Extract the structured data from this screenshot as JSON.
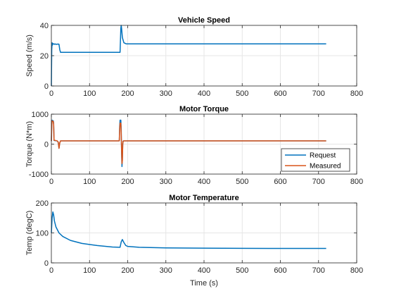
{
  "colors": {
    "request": "#0072BD",
    "measured": "#D95319",
    "grid": "#e6e6e6",
    "axis": "#262626"
  },
  "chart_data": [
    {
      "type": "line",
      "title": "Vehicle Speed",
      "xlabel": "",
      "ylabel": "Speed (m/s)",
      "xlim": [
        0,
        800
      ],
      "ylim": [
        0,
        40
      ],
      "xticks": [
        0,
        100,
        200,
        300,
        400,
        500,
        600,
        700,
        800
      ],
      "yticks": [
        0,
        20,
        40
      ],
      "grid": true,
      "series": [
        {
          "color": "#0072BD",
          "x": [
            0,
            1,
            2,
            3,
            4,
            8,
            9,
            12,
            18,
            20,
            22,
            24,
            180,
            181,
            182,
            183,
            184,
            186,
            190,
            196,
            200,
            720
          ],
          "y": [
            0,
            24,
            28.5,
            27,
            28,
            27.5,
            27.8,
            27.5,
            27.7,
            27.5,
            24,
            22.2,
            22.2,
            30,
            38,
            40,
            38,
            32,
            28.5,
            27.8,
            27.8,
            27.8
          ]
        }
      ]
    },
    {
      "type": "line",
      "title": "Motor Torque",
      "xlabel": "",
      "ylabel": "Torque (N*m)",
      "xlim": [
        0,
        800
      ],
      "ylim": [
        -1000,
        1000
      ],
      "xticks": [
        0,
        100,
        200,
        300,
        400,
        500,
        600,
        700,
        800
      ],
      "yticks": [
        -1000,
        0,
        1000
      ],
      "grid": true,
      "legend": "bottom-right",
      "series": [
        {
          "name": "Request",
          "color": "#0072BD",
          "x": [
            0,
            1,
            2,
            3,
            5,
            6,
            7,
            15,
            18,
            20,
            22,
            24,
            178,
            179,
            180,
            182,
            183,
            184,
            185,
            186,
            187,
            188,
            190,
            195,
            720
          ],
          "y": [
            100,
            780,
            800,
            780,
            780,
            700,
            120,
            110,
            60,
            -140,
            40,
            110,
            110,
            600,
            800,
            800,
            500,
            -300,
            -750,
            -500,
            0,
            100,
            110,
            110,
            110
          ]
        },
        {
          "name": "Measured",
          "color": "#D95319",
          "x": [
            0,
            1,
            2,
            3,
            5,
            6,
            7,
            15,
            18,
            20,
            22,
            24,
            178,
            179,
            180,
            182,
            183,
            184,
            185,
            186,
            187,
            188,
            190,
            195,
            720
          ],
          "y": [
            100,
            600,
            780,
            760,
            760,
            650,
            130,
            110,
            70,
            -140,
            40,
            110,
            110,
            500,
            700,
            700,
            350,
            -200,
            -650,
            -550,
            0,
            100,
            110,
            110,
            110
          ]
        }
      ]
    },
    {
      "type": "line",
      "title": "Motor Temperature",
      "xlabel": "Time (s)",
      "ylabel": "Temp (degC)",
      "xlim": [
        0,
        800
      ],
      "ylim": [
        0,
        200
      ],
      "xticks": [
        0,
        100,
        200,
        300,
        400,
        500,
        600,
        700,
        800
      ],
      "yticks": [
        0,
        100,
        200
      ],
      "grid": true,
      "series": [
        {
          "color": "#0072BD",
          "x": [
            0,
            2,
            4,
            6,
            8,
            12,
            20,
            30,
            50,
            80,
            120,
            160,
            180,
            183,
            186,
            190,
            195,
            200,
            230,
            300,
            400,
            500,
            600,
            720
          ],
          "y": [
            100,
            150,
            170,
            160,
            140,
            120,
            100,
            88,
            75,
            65,
            58,
            53,
            52,
            70,
            78,
            68,
            58,
            55,
            52,
            50,
            49,
            48.5,
            48.3,
            48.2
          ]
        }
      ]
    }
  ]
}
